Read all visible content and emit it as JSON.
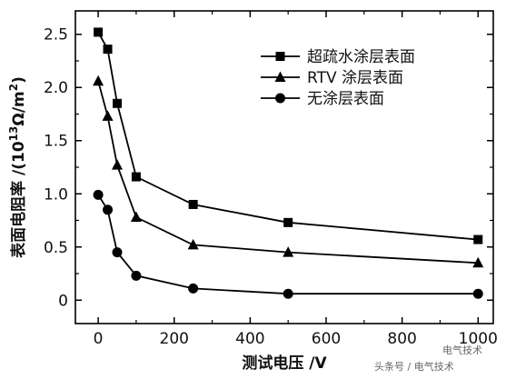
{
  "chart_data": {
    "type": "line",
    "title": "",
    "xlabel": "测试电压 /V",
    "ylabel_main": "表面电阻率 /(10",
    "ylabel_exp": "13",
    "ylabel_tail": "Ω/m",
    "ylabel_sup2": "2",
    "ylabel_close": ")",
    "xlim": [
      -60,
      1040
    ],
    "ylim": [
      -0.22,
      2.72
    ],
    "xticks": [
      0,
      200,
      400,
      600,
      800,
      1000
    ],
    "xtick_labels": [
      "0",
      "200",
      "400",
      "600",
      "800",
      "1000"
    ],
    "yticks": [
      0,
      0.5,
      1.0,
      1.5,
      2.0,
      2.5
    ],
    "ytick_labels": [
      "0",
      "0.5",
      "1.0",
      "1.5",
      "2.0",
      "2.5"
    ],
    "grid": false,
    "legend_position": "top-right",
    "x": [
      0,
      25,
      50,
      100,
      250,
      500,
      1000
    ],
    "series": [
      {
        "name": "超疏水涂层表面",
        "marker": "square",
        "values": [
          2.52,
          2.36,
          1.85,
          1.16,
          0.9,
          0.73,
          0.57
        ]
      },
      {
        "name": "RTV 涂层表面",
        "marker": "triangle",
        "values": [
          2.06,
          1.73,
          1.27,
          0.78,
          0.52,
          0.45,
          0.35
        ]
      },
      {
        "name": "无涂层表面",
        "marker": "circle",
        "values": [
          0.99,
          0.85,
          0.45,
          0.23,
          0.11,
          0.06,
          0.06
        ]
      }
    ]
  },
  "watermark": {
    "line1": "电气技术",
    "line2": "头条号 / 电气技术"
  }
}
